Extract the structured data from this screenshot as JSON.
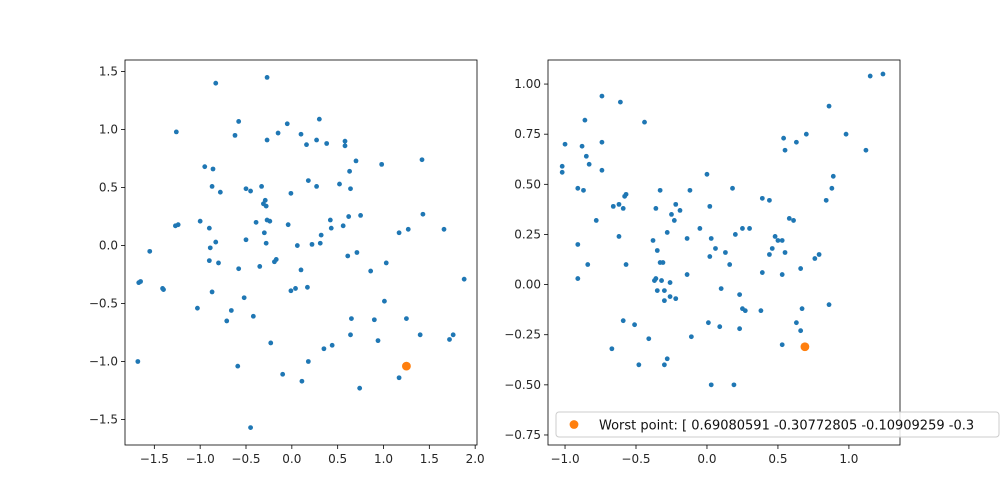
{
  "chart_data": [
    {
      "type": "scatter",
      "xlim": [
        -1.82,
        2.02
      ],
      "ylim": [
        -1.72,
        1.6
      ],
      "xticks": [
        -1.5,
        -1.0,
        -0.5,
        0.0,
        0.5,
        1.0,
        1.5,
        2.0
      ],
      "yticks": [
        -1.5,
        -1.0,
        -0.5,
        0.0,
        0.5,
        1.0,
        1.5
      ],
      "xtick_labels": [
        "−1.5",
        "−1.0",
        "−0.5",
        "0.0",
        "0.5",
        "1.0",
        "1.5",
        "2.0"
      ],
      "ytick_labels": [
        "−1.5",
        "−1.0",
        "−0.5",
        "0.0",
        "0.5",
        "1.0",
        "1.5"
      ],
      "grid": false,
      "series": [
        {
          "color": "#1f77b4",
          "points": [
            [
              -0.83,
              1.4
            ],
            [
              -0.27,
              1.45
            ],
            [
              -1.26,
              0.98
            ],
            [
              -0.62,
              0.95
            ],
            [
              -0.58,
              1.07
            ],
            [
              -0.27,
              0.91
            ],
            [
              -0.15,
              0.97
            ],
            [
              -0.05,
              1.05
            ],
            [
              0.1,
              0.96
            ],
            [
              0.16,
              0.87
            ],
            [
              0.27,
              0.91
            ],
            [
              0.3,
              1.09
            ],
            [
              0.38,
              0.88
            ],
            [
              0.58,
              0.9
            ],
            [
              0.58,
              0.86
            ],
            [
              0.7,
              0.73
            ],
            [
              0.98,
              0.7
            ],
            [
              1.42,
              0.74
            ],
            [
              -0.95,
              0.68
            ],
            [
              -0.86,
              0.66
            ],
            [
              -0.87,
              0.51
            ],
            [
              -0.78,
              0.46
            ],
            [
              -0.5,
              0.49
            ],
            [
              -0.45,
              0.47
            ],
            [
              -0.33,
              0.51
            ],
            [
              -0.29,
              0.39
            ],
            [
              -0.31,
              0.36
            ],
            [
              -0.28,
              0.34
            ],
            [
              -0.01,
              0.45
            ],
            [
              0.18,
              0.56
            ],
            [
              0.27,
              0.51
            ],
            [
              0.52,
              0.53
            ],
            [
              0.63,
              0.64
            ],
            [
              0.64,
              0.49
            ],
            [
              0.75,
              0.26
            ],
            [
              0.62,
              0.25
            ],
            [
              0.56,
              0.17
            ],
            [
              0.42,
              0.22
            ],
            [
              0.43,
              0.15
            ],
            [
              0.32,
              0.09
            ],
            [
              0.31,
              0.02
            ],
            [
              0.22,
              0.01
            ],
            [
              0.06,
              0.0
            ],
            [
              -0.04,
              0.18
            ],
            [
              -0.24,
              0.21
            ],
            [
              -0.27,
              0.22
            ],
            [
              -0.39,
              0.2
            ],
            [
              -0.3,
              0.11
            ],
            [
              -0.28,
              0.02
            ],
            [
              -0.5,
              0.05
            ],
            [
              -1.0,
              0.21
            ],
            [
              -0.9,
              0.15
            ],
            [
              -0.89,
              -0.02
            ],
            [
              -0.83,
              0.03
            ],
            [
              -1.24,
              0.18
            ],
            [
              -1.27,
              0.17
            ],
            [
              -1.55,
              -0.05
            ],
            [
              -1.65,
              -0.31
            ],
            [
              -1.67,
              -0.32
            ],
            [
              -1.41,
              -0.37
            ],
            [
              -1.4,
              -0.38
            ],
            [
              -1.68,
              -1.0
            ],
            [
              -0.9,
              -0.13
            ],
            [
              -0.8,
              -0.15
            ],
            [
              -0.58,
              -0.2
            ],
            [
              -0.35,
              -0.18
            ],
            [
              -0.19,
              -0.14
            ],
            [
              -0.17,
              -0.12
            ],
            [
              -0.01,
              -0.39
            ],
            [
              0.04,
              -0.37
            ],
            [
              0.1,
              -0.21
            ],
            [
              0.17,
              -0.36
            ],
            [
              0.61,
              -0.09
            ],
            [
              0.71,
              -0.06
            ],
            [
              0.86,
              -0.22
            ],
            [
              1.03,
              -0.15
            ],
            [
              1.17,
              0.11
            ],
            [
              1.27,
              0.14
            ],
            [
              1.43,
              0.27
            ],
            [
              1.66,
              0.14
            ],
            [
              1.88,
              -0.29
            ],
            [
              1.01,
              -0.48
            ],
            [
              -1.03,
              -0.54
            ],
            [
              -0.87,
              -0.4
            ],
            [
              -0.52,
              -0.45
            ],
            [
              -0.66,
              -0.56
            ],
            [
              -0.71,
              -0.65
            ],
            [
              -0.42,
              -0.61
            ],
            [
              -0.23,
              -0.84
            ],
            [
              0.65,
              -0.63
            ],
            [
              0.64,
              -0.77
            ],
            [
              0.44,
              -0.86
            ],
            [
              0.35,
              -0.89
            ],
            [
              0.9,
              -0.64
            ],
            [
              0.94,
              -0.82
            ],
            [
              1.25,
              -0.63
            ],
            [
              1.4,
              -0.77
            ],
            [
              1.72,
              -0.81
            ],
            [
              1.76,
              -0.77
            ],
            [
              1.17,
              -1.14
            ],
            [
              0.18,
              -1.0
            ],
            [
              0.11,
              -1.17
            ],
            [
              -0.1,
              -1.11
            ],
            [
              -0.59,
              -1.04
            ],
            [
              0.74,
              -1.23
            ],
            [
              -0.45,
              -1.57
            ]
          ]
        },
        {
          "color": "#ff7f0e",
          "points": [
            [
              1.25,
              -1.04
            ]
          ]
        }
      ]
    },
    {
      "type": "scatter",
      "xlim": [
        -1.12,
        1.36
      ],
      "ylim": [
        -0.8,
        1.12
      ],
      "xticks": [
        -1.0,
        -0.5,
        0.0,
        0.5,
        1.0
      ],
      "yticks": [
        -0.75,
        -0.5,
        -0.25,
        0.0,
        0.25,
        0.5,
        0.75,
        1.0
      ],
      "xtick_labels": [
        "−1.0",
        "−0.5",
        "0.0",
        "0.5",
        "1.0"
      ],
      "ytick_labels": [
        "−0.75",
        "−0.50",
        "−0.25",
        "0.00",
        "0.25",
        "0.50",
        "0.75",
        "1.00"
      ],
      "grid": false,
      "legend": {
        "position": "lower-right",
        "entries": [
          {
            "label": "Worst point: [ 0.69080591 -0.30772805 -0.10909259 -0.3",
            "color": "#ff7f0e"
          }
        ]
      },
      "series": [
        {
          "color": "#1f77b4",
          "points": [
            [
              -0.74,
              0.94
            ],
            [
              -0.61,
              0.91
            ],
            [
              -0.86,
              0.82
            ],
            [
              -0.44,
              0.81
            ],
            [
              -1.0,
              0.7
            ],
            [
              -0.88,
              0.69
            ],
            [
              -0.74,
              0.71
            ],
            [
              -0.85,
              0.64
            ],
            [
              -0.83,
              0.6
            ],
            [
              -1.02,
              0.59
            ],
            [
              -1.02,
              0.56
            ],
            [
              -0.74,
              0.57
            ],
            [
              -0.91,
              0.48
            ],
            [
              -0.87,
              0.47
            ],
            [
              -0.78,
              0.32
            ],
            [
              -0.66,
              0.39
            ],
            [
              -0.62,
              0.4
            ],
            [
              -0.57,
              0.45
            ],
            [
              -0.58,
              0.44
            ],
            [
              -0.59,
              0.38
            ],
            [
              -0.62,
              0.24
            ],
            [
              -0.33,
              0.47
            ],
            [
              -0.22,
              0.4
            ],
            [
              -0.36,
              0.38
            ],
            [
              -0.25,
              0.35
            ],
            [
              -0.12,
              0.47
            ],
            [
              0.0,
              0.55
            ],
            [
              0.02,
              0.39
            ],
            [
              -0.23,
              0.32
            ],
            [
              -0.28,
              0.26
            ],
            [
              -0.05,
              0.28
            ],
            [
              0.03,
              0.23
            ],
            [
              0.18,
              0.48
            ],
            [
              0.2,
              0.25
            ],
            [
              0.25,
              0.28
            ],
            [
              0.3,
              0.28
            ],
            [
              0.39,
              0.43
            ],
            [
              0.44,
              0.42
            ],
            [
              0.54,
              0.73
            ],
            [
              0.55,
              0.67
            ],
            [
              0.63,
              0.71
            ],
            [
              0.7,
              0.75
            ],
            [
              0.86,
              0.89
            ],
            [
              0.98,
              0.75
            ],
            [
              1.12,
              0.67
            ],
            [
              1.15,
              1.04
            ],
            [
              1.24,
              1.05
            ],
            [
              0.61,
              0.32
            ],
            [
              0.58,
              0.33
            ],
            [
              0.88,
              0.48
            ],
            [
              0.89,
              0.54
            ],
            [
              0.84,
              0.42
            ],
            [
              0.79,
              0.15
            ],
            [
              0.76,
              0.13
            ],
            [
              0.48,
              0.24
            ],
            [
              0.5,
              0.22
            ],
            [
              0.53,
              0.22
            ],
            [
              0.46,
              0.18
            ],
            [
              0.44,
              0.15
            ],
            [
              0.55,
              0.16
            ],
            [
              0.39,
              0.06
            ],
            [
              0.53,
              0.05
            ],
            [
              0.66,
              0.08
            ],
            [
              0.13,
              0.16
            ],
            [
              0.06,
              0.18
            ],
            [
              0.16,
              0.1
            ],
            [
              0.1,
              -0.02
            ],
            [
              0.02,
              0.14
            ],
            [
              -0.14,
              0.23
            ],
            [
              -0.19,
              0.37
            ],
            [
              -0.38,
              0.22
            ],
            [
              -0.35,
              0.17
            ],
            [
              -0.57,
              0.1
            ],
            [
              -0.31,
              0.11
            ],
            [
              -0.33,
              0.11
            ],
            [
              -0.36,
              0.03
            ],
            [
              -0.37,
              0.02
            ],
            [
              -0.32,
              0.02
            ],
            [
              -0.26,
              0.01
            ],
            [
              -0.14,
              0.05
            ],
            [
              -0.3,
              -0.03
            ],
            [
              -0.35,
              -0.03
            ],
            [
              -0.26,
              -0.06
            ],
            [
              -0.3,
              -0.08
            ],
            [
              -0.22,
              -0.07
            ],
            [
              -0.91,
              0.2
            ],
            [
              -0.91,
              0.03
            ],
            [
              -0.84,
              0.1
            ],
            [
              -0.59,
              -0.18
            ],
            [
              -0.51,
              -0.2
            ],
            [
              -0.67,
              -0.32
            ],
            [
              -0.41,
              -0.27
            ],
            [
              -0.48,
              -0.4
            ],
            [
              -0.28,
              -0.37
            ],
            [
              -0.3,
              -0.4
            ],
            [
              -0.11,
              -0.26
            ],
            [
              0.01,
              -0.19
            ],
            [
              0.09,
              -0.21
            ],
            [
              0.23,
              -0.05
            ],
            [
              0.25,
              -0.12
            ],
            [
              0.27,
              -0.13
            ],
            [
              0.23,
              -0.22
            ],
            [
              0.38,
              -0.13
            ],
            [
              0.63,
              -0.19
            ],
            [
              0.53,
              -0.3
            ],
            [
              0.66,
              -0.23
            ],
            [
              0.67,
              -0.12
            ],
            [
              0.86,
              -0.1
            ],
            [
              0.03,
              -0.5
            ],
            [
              0.19,
              -0.5
            ]
          ]
        },
        {
          "color": "#ff7f0e",
          "points": [
            [
              0.69,
              -0.31
            ]
          ]
        }
      ]
    }
  ]
}
